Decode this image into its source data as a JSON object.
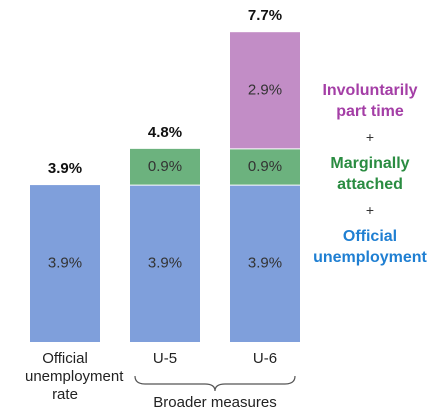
{
  "chart_data": {
    "type": "stacked_bar",
    "categories": [
      "Official unemployment rate",
      "U-5",
      "U-6"
    ],
    "series": [
      {
        "name": "Official unemployment",
        "color": "#7f9fdb",
        "text_color": "#1f7fd2",
        "values": [
          3.9,
          3.9,
          3.9
        ],
        "value_labels": [
          "3.9%",
          "3.9%",
          "3.9%"
        ]
      },
      {
        "name": "Marginally attached",
        "color": "#6cb27e",
        "text_color": "#2a8c41",
        "values": [
          null,
          0.9,
          0.9
        ],
        "value_labels": [
          null,
          "0.9%",
          "0.9%"
        ]
      },
      {
        "name": "Involuntarily part time",
        "color": "#c28dc6",
        "text_color": "#a43ea6",
        "values": [
          null,
          null,
          2.9
        ],
        "value_labels": [
          null,
          null,
          "2.9%"
        ]
      }
    ],
    "totals": [
      3.9,
      4.8,
      7.7
    ],
    "total_labels": [
      "3.9%",
      "4.8%",
      "7.7%"
    ],
    "bracket_label": "Broader measures",
    "legend_joiner": "+",
    "ylim": [
      0,
      8.5
    ]
  }
}
